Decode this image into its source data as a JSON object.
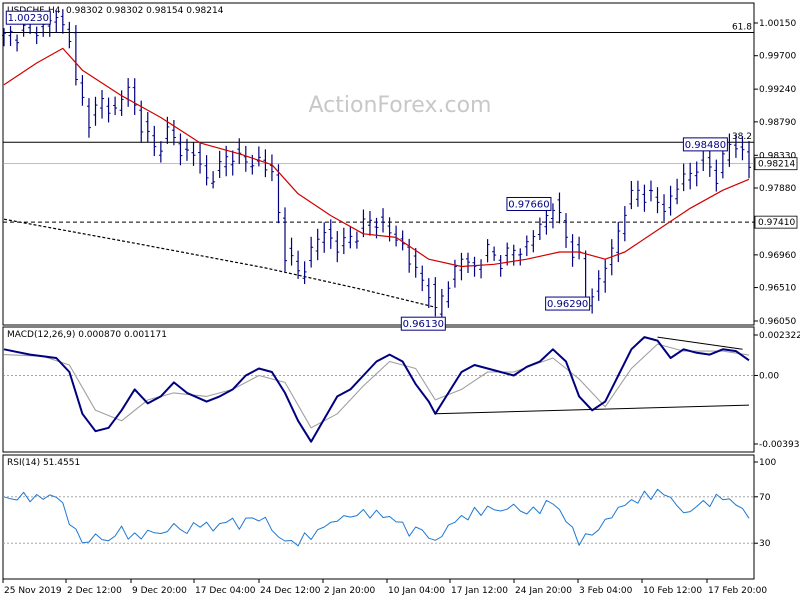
{
  "header": {
    "symbol": "USDCHF",
    "timeframe": "H4",
    "ohlc": "0.98302 0.98302 0.98154 0.98214"
  },
  "watermark": "ActionForex.com",
  "colors": {
    "frame": "#000000",
    "price": "#000080",
    "ma_fast": "#d00000",
    "ma_slow": "#000000",
    "macd": "#000080",
    "signal": "#a0a0a0",
    "rsi": "#1e78d2",
    "label_bg": "#ffffff",
    "label_border": "#000080",
    "watermark": "#c8c8c8"
  },
  "chart_data": [
    {
      "type": "line",
      "name": "price",
      "y_ticks": [
        "1.00150",
        "0.99700",
        "0.99240",
        "0.98790",
        "0.98330",
        "0.97880",
        "0.97410",
        "0.96960",
        "0.96510",
        "0.96050"
      ],
      "ylim": [
        0.9605,
        1.0015
      ],
      "x_categories": [
        "25 Nov 2019",
        "2 Dec 12:00",
        "9 Dec 20:00",
        "17 Dec 04:00",
        "24 Dec 12:00",
        "2 Jan 20:00",
        "10 Jan 04:00",
        "17 Jan 12:00",
        "24 Jan 20:00",
        "3 Feb 04:00",
        "10 Feb 12:00",
        "17 Feb 20:00"
      ],
      "close_series": [
        [
          0,
          0.9995
        ],
        [
          3,
          1.0005
        ],
        [
          6,
          1.001
        ],
        [
          8,
          1.0023
        ],
        [
          10,
          0.9998
        ],
        [
          11,
          0.993
        ],
        [
          13,
          0.9885
        ],
        [
          15,
          0.9905
        ],
        [
          17,
          0.9895
        ],
        [
          19,
          0.9925
        ],
        [
          21,
          0.9875
        ],
        [
          23,
          0.984
        ],
        [
          25,
          0.9865
        ],
        [
          27,
          0.984
        ],
        [
          29,
          0.9835
        ],
        [
          31,
          0.98
        ],
        [
          33,
          0.9815
        ],
        [
          35,
          0.9838
        ],
        [
          37,
          0.982
        ],
        [
          39,
          0.9828
        ],
        [
          41,
          0.9805
        ],
        [
          43,
          0.97
        ],
        [
          45,
          0.967
        ],
        [
          47,
          0.97
        ],
        [
          49,
          0.973
        ],
        [
          51,
          0.9705
        ],
        [
          53,
          0.972
        ],
        [
          55,
          0.9735
        ],
        [
          57,
          0.9745
        ],
        [
          59,
          0.9725
        ],
        [
          61,
          0.971
        ],
        [
          63,
          0.967
        ],
        [
          65,
          0.965
        ],
        [
          66,
          0.9613
        ],
        [
          68,
          0.966
        ],
        [
          70,
          0.969
        ],
        [
          72,
          0.968
        ],
        [
          74,
          0.97
        ],
        [
          76,
          0.969
        ],
        [
          78,
          0.97
        ],
        [
          80,
          0.971
        ],
        [
          82,
          0.9735
        ],
        [
          84,
          0.9766
        ],
        [
          86,
          0.972
        ],
        [
          88,
          0.969
        ],
        [
          89,
          0.9629
        ],
        [
          91,
          0.966
        ],
        [
          93,
          0.97
        ],
        [
          95,
          0.976
        ],
        [
          97,
          0.9785
        ],
        [
          99,
          0.9775
        ],
        [
          101,
          0.976
        ],
        [
          103,
          0.979
        ],
        [
          105,
          0.981
        ],
        [
          107,
          0.983
        ],
        [
          109,
          0.9805
        ],
        [
          111,
          0.9848
        ],
        [
          113,
          0.984
        ],
        [
          114,
          0.9821
        ]
      ],
      "ma_fast_series": [
        [
          0,
          0.993
        ],
        [
          5,
          0.996
        ],
        [
          9,
          0.998
        ],
        [
          12,
          0.995
        ],
        [
          18,
          0.9915
        ],
        [
          24,
          0.9885
        ],
        [
          30,
          0.985
        ],
        [
          36,
          0.9835
        ],
        [
          41,
          0.982
        ],
        [
          45,
          0.978
        ],
        [
          50,
          0.975
        ],
        [
          55,
          0.9725
        ],
        [
          60,
          0.972
        ],
        [
          65,
          0.969
        ],
        [
          70,
          0.968
        ],
        [
          75,
          0.9683
        ],
        [
          80,
          0.969
        ],
        [
          85,
          0.97
        ],
        [
          88,
          0.97
        ],
        [
          92,
          0.969
        ],
        [
          95,
          0.97
        ],
        [
          100,
          0.973
        ],
        [
          105,
          0.976
        ],
        [
          110,
          0.9785
        ],
        [
          114,
          0.98
        ]
      ],
      "ma_slow_series": [
        [
          0,
          0.9745
        ],
        [
          20,
          0.9712
        ],
        [
          40,
          0.9678
        ],
        [
          55,
          0.9648
        ],
        [
          66,
          0.9624
        ]
      ],
      "hlines": [
        {
          "value": 1.0002,
          "label": "61.8",
          "style": "solid"
        },
        {
          "value": 0.9851,
          "label": "38.2",
          "style": "solid"
        },
        {
          "value": 0.9741,
          "label": "",
          "style": "dashed"
        }
      ],
      "current_price_label": "0.98214",
      "level_label": "0.97410",
      "annotations": [
        {
          "x": 8,
          "y": 1.0023,
          "text": "1.00230"
        },
        {
          "x": 66,
          "y": 0.9613,
          "text": "0.96130"
        },
        {
          "x": 84,
          "y": 0.9766,
          "text": "0.97660"
        },
        {
          "x": 89,
          "y": 0.9629,
          "text": "0.96290"
        },
        {
          "x": 111,
          "y": 0.9848,
          "text": "0.98480"
        }
      ],
      "n_points": 115
    },
    {
      "type": "line",
      "name": "MACD",
      "header": "MACD(12,26,9) 0.000870 0.001171",
      "y_ticks": [
        "0.002322",
        "0.00",
        "-0.003932"
      ],
      "ylim": [
        -0.003932,
        0.002322
      ],
      "macd_series": [
        [
          0,
          0.0015
        ],
        [
          4,
          0.0012
        ],
        [
          8,
          0.001
        ],
        [
          10,
          0.0002
        ],
        [
          12,
          -0.0022
        ],
        [
          14,
          -0.0032
        ],
        [
          16,
          -0.003
        ],
        [
          18,
          -0.002
        ],
        [
          20,
          -0.0008
        ],
        [
          22,
          -0.0016
        ],
        [
          24,
          -0.0012
        ],
        [
          26,
          -0.0004
        ],
        [
          28,
          -0.001
        ],
        [
          31,
          -0.0015
        ],
        [
          33,
          -0.0012
        ],
        [
          35,
          -0.0008
        ],
        [
          37,
          0.0
        ],
        [
          39,
          0.0004
        ],
        [
          41,
          0.0002
        ],
        [
          43,
          -0.001
        ],
        [
          45,
          -0.0026
        ],
        [
          47,
          -0.0038
        ],
        [
          49,
          -0.0025
        ],
        [
          51,
          -0.0012
        ],
        [
          53,
          -0.0008
        ],
        [
          55,
          0.0
        ],
        [
          57,
          0.0008
        ],
        [
          59,
          0.0012
        ],
        [
          61,
          0.0008
        ],
        [
          63,
          -0.0005
        ],
        [
          65,
          -0.0015
        ],
        [
          66,
          -0.0022
        ],
        [
          68,
          -0.001
        ],
        [
          70,
          0.0002
        ],
        [
          72,
          0.0006
        ],
        [
          74,
          0.0004
        ],
        [
          76,
          0.0002
        ],
        [
          78,
          0.0
        ],
        [
          80,
          0.0005
        ],
        [
          82,
          0.0008
        ],
        [
          84,
          0.0015
        ],
        [
          86,
          0.0008
        ],
        [
          88,
          -0.0012
        ],
        [
          90,
          -0.002
        ],
        [
          92,
          -0.0015
        ],
        [
          94,
          0.0
        ],
        [
          96,
          0.0015
        ],
        [
          98,
          0.0022
        ],
        [
          100,
          0.002
        ],
        [
          102,
          0.001
        ],
        [
          104,
          0.0015
        ],
        [
          106,
          0.0013
        ],
        [
          108,
          0.0012
        ],
        [
          110,
          0.0015
        ],
        [
          112,
          0.0014
        ],
        [
          114,
          0.00087
        ]
      ],
      "signal_series": [
        [
          0,
          0.0012
        ],
        [
          6,
          0.0011
        ],
        [
          10,
          0.0006
        ],
        [
          14,
          -0.002
        ],
        [
          18,
          -0.0026
        ],
        [
          22,
          -0.0014
        ],
        [
          26,
          -0.001
        ],
        [
          31,
          -0.0012
        ],
        [
          35,
          -0.0008
        ],
        [
          39,
          0.0
        ],
        [
          43,
          -0.0004
        ],
        [
          47,
          -0.003
        ],
        [
          51,
          -0.0022
        ],
        [
          55,
          -0.0006
        ],
        [
          59,
          0.0008
        ],
        [
          63,
          0.0004
        ],
        [
          66,
          -0.0014
        ],
        [
          70,
          -0.0008
        ],
        [
          74,
          0.0002
        ],
        [
          78,
          0.0002
        ],
        [
          84,
          0.001
        ],
        [
          88,
          -0.0002
        ],
        [
          92,
          -0.0018
        ],
        [
          96,
          0.0004
        ],
        [
          100,
          0.0018
        ],
        [
          104,
          0.0014
        ],
        [
          110,
          0.0014
        ],
        [
          114,
          0.001171
        ]
      ],
      "trendlines": [
        [
          [
            100,
            0.0022
          ],
          [
            113,
            0.0015
          ]
        ],
        [
          [
            66,
            -0.0022
          ],
          [
            114,
            -0.0017
          ]
        ]
      ]
    },
    {
      "type": "line",
      "name": "RSI",
      "header": "RSI(14) 51.4551",
      "y_ticks": [
        "100",
        "70",
        "30"
      ],
      "ylim": [
        0,
        100
      ],
      "levels": [
        70,
        30
      ],
      "rsi_series": [
        [
          0,
          68
        ],
        [
          3,
          70
        ],
        [
          6,
          69
        ],
        [
          8,
          72
        ],
        [
          10,
          50
        ],
        [
          12,
          30
        ],
        [
          14,
          36
        ],
        [
          16,
          32
        ],
        [
          18,
          42
        ],
        [
          20,
          34
        ],
        [
          22,
          40
        ],
        [
          24,
          38
        ],
        [
          26,
          45
        ],
        [
          28,
          40
        ],
        [
          30,
          48
        ],
        [
          32,
          42
        ],
        [
          34,
          50
        ],
        [
          36,
          46
        ],
        [
          38,
          52
        ],
        [
          40,
          50
        ],
        [
          42,
          35
        ],
        [
          44,
          30
        ],
        [
          46,
          34
        ],
        [
          48,
          40
        ],
        [
          50,
          48
        ],
        [
          52,
          52
        ],
        [
          54,
          55
        ],
        [
          56,
          56
        ],
        [
          58,
          54
        ],
        [
          60,
          50
        ],
        [
          62,
          40
        ],
        [
          64,
          42
        ],
        [
          66,
          30
        ],
        [
          68,
          45
        ],
        [
          70,
          52
        ],
        [
          72,
          56
        ],
        [
          74,
          60
        ],
        [
          76,
          58
        ],
        [
          78,
          62
        ],
        [
          80,
          56
        ],
        [
          82,
          60
        ],
        [
          84,
          66
        ],
        [
          86,
          50
        ],
        [
          88,
          32
        ],
        [
          90,
          38
        ],
        [
          92,
          48
        ],
        [
          94,
          60
        ],
        [
          96,
          66
        ],
        [
          98,
          70
        ],
        [
          100,
          74
        ],
        [
          102,
          70
        ],
        [
          104,
          55
        ],
        [
          106,
          62
        ],
        [
          108,
          66
        ],
        [
          110,
          70
        ],
        [
          112,
          64
        ],
        [
          114,
          51.4551
        ]
      ]
    }
  ]
}
